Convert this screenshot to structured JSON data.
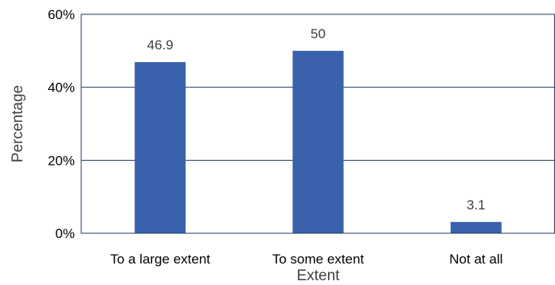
{
  "chart_data": {
    "type": "bar",
    "title": "",
    "xlabel": "Extent",
    "ylabel": "Percentage",
    "categories": [
      "To a large extent",
      "To some extent",
      "Not at all"
    ],
    "values": [
      46.9,
      50,
      3.1
    ],
    "data_labels": [
      "46.9",
      "50",
      "3.1"
    ],
    "ylim": [
      0,
      60
    ],
    "yticks": [
      0,
      20,
      40,
      60
    ],
    "ytick_labels": [
      "0%",
      "20%",
      "40%",
      "60%"
    ],
    "grid": true,
    "legend": "none",
    "bar_color": "#3a62ac",
    "axis_color": "#1f3864"
  }
}
